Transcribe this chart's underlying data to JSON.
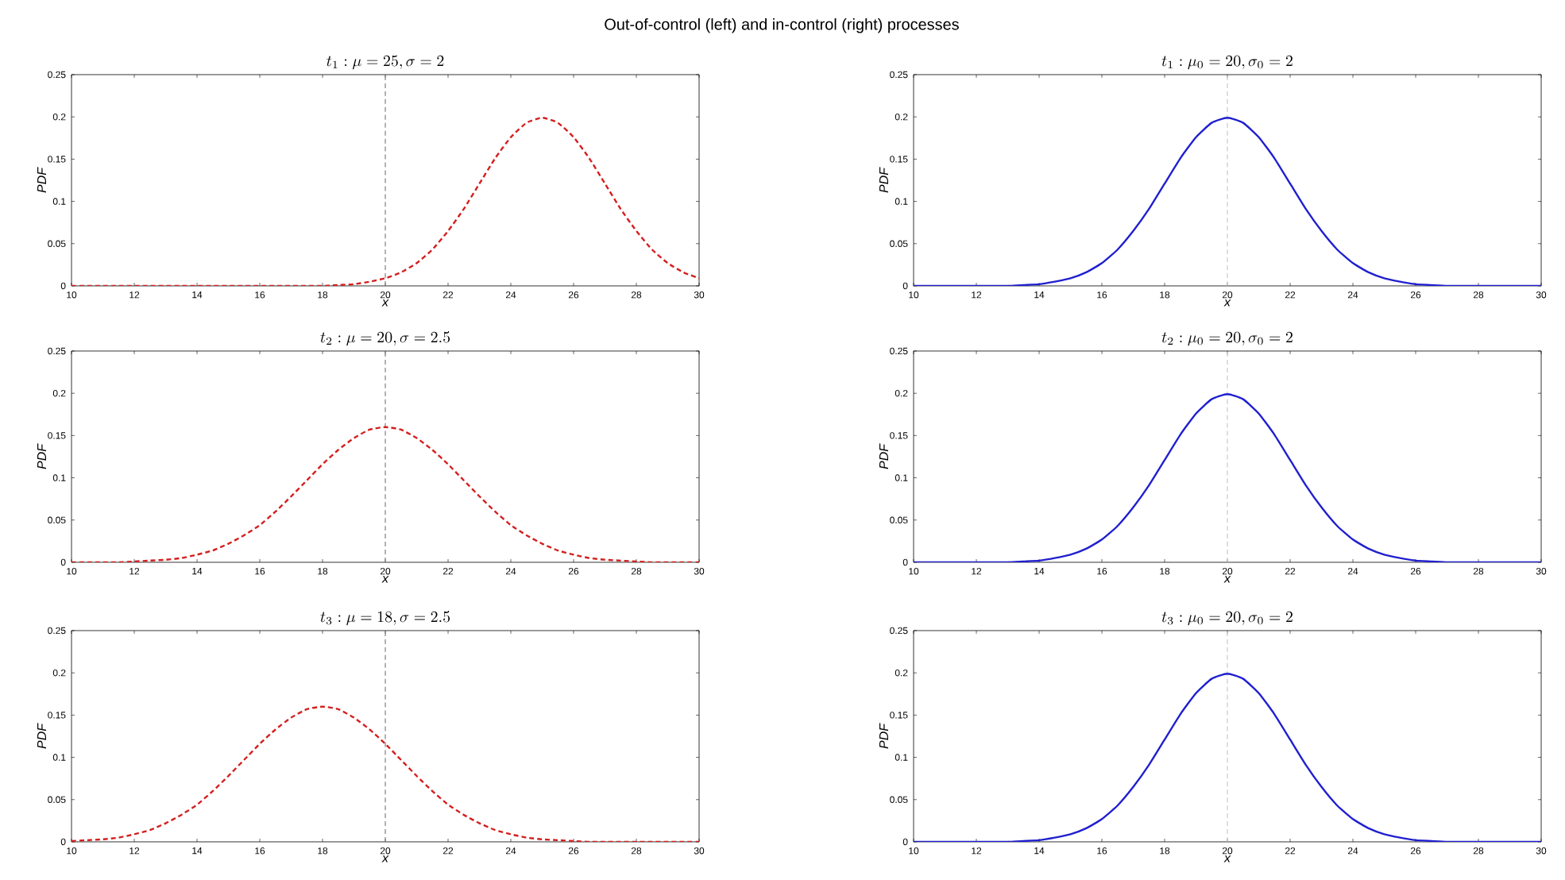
{
  "chart_data": [
    {
      "type": "line",
      "title": "t_1 : \\mu = 25, \\sigma = 2",
      "xlabel": "x",
      "ylabel": "PDF",
      "annotations": [
        "Out-of-control (left) and in-control (right) processes"
      ],
      "line_style": "dashed",
      "xlim": [
        10,
        30
      ],
      "ylim": [
        0,
        0.25
      ],
      "xticks": [
        10,
        12,
        14,
        16,
        18,
        20,
        22,
        24,
        26,
        28,
        30
      ],
      "yticks": [
        0,
        0.05,
        0.1,
        0.15,
        0.2,
        0.25
      ],
      "x": [
        10,
        10.5,
        11,
        11.5,
        12,
        12.5,
        13,
        13.5,
        14,
        14.5,
        15,
        15.5,
        16,
        16.5,
        17,
        17.5,
        18,
        18.5,
        19,
        19.5,
        20,
        20.5,
        21,
        21.5,
        22,
        22.5,
        23,
        23.5,
        24,
        24.5,
        25,
        25.5,
        26,
        26.5,
        27,
        27.5,
        28,
        28.5,
        29,
        29.5,
        30
      ],
      "series": [
        {
          "color": "#d41f1f",
          "values": [
            0,
            0,
            0,
            0,
            0,
            0,
            0,
            0,
            0,
            0,
            0,
            0,
            0,
            0,
            0,
            0,
            0,
            0.001,
            0.002,
            0.005,
            0.009,
            0.016,
            0.027,
            0.043,
            0.065,
            0.091,
            0.121,
            0.151,
            0.176,
            0.193,
            0.199,
            0.193,
            0.176,
            0.151,
            0.121,
            0.091,
            0.065,
            0.043,
            0.027,
            0.016,
            0.009
          ]
        }
      ],
      "ref_lines": [
        {
          "axis": "x",
          "value": 20,
          "color": "#808080",
          "line_style": "dashed"
        }
      ]
    },
    {
      "type": "line",
      "title": "t_1 : \\mu_0 = 20, \\sigma_0 = 2",
      "xlabel": "x",
      "ylabel": "PDF",
      "line_style": "solid",
      "xlim": [
        10,
        30
      ],
      "ylim": [
        0,
        0.25
      ],
      "xticks": [
        10,
        12,
        14,
        16,
        18,
        20,
        22,
        24,
        26,
        28,
        30
      ],
      "yticks": [
        0,
        0.05,
        0.1,
        0.15,
        0.2,
        0.25
      ],
      "x": [
        10,
        10.5,
        11,
        11.5,
        12,
        12.5,
        13,
        13.5,
        14,
        14.5,
        15,
        15.5,
        16,
        16.5,
        17,
        17.5,
        18,
        18.5,
        19,
        19.5,
        20,
        20.5,
        21,
        21.5,
        22,
        22.5,
        23,
        23.5,
        24,
        24.5,
        25,
        25.5,
        26,
        26.5,
        27,
        27.5,
        28,
        28.5,
        29,
        29.5,
        30
      ],
      "series": [
        {
          "color": "#1f1fd0",
          "values": [
            0,
            0,
            0,
            0,
            0,
            0,
            0,
            0.001,
            0.002,
            0.005,
            0.009,
            0.016,
            0.027,
            0.043,
            0.065,
            0.091,
            0.121,
            0.151,
            0.176,
            0.193,
            0.199,
            0.193,
            0.176,
            0.151,
            0.121,
            0.091,
            0.065,
            0.043,
            0.027,
            0.016,
            0.009,
            0.005,
            0.002,
            0.001,
            0,
            0,
            0,
            0,
            0,
            0,
            0
          ]
        }
      ],
      "ref_lines": [
        {
          "axis": "x",
          "value": 20,
          "color": "#c8c8c8",
          "line_style": "dashed"
        }
      ]
    },
    {
      "type": "line",
      "title": "t_2 : \\mu = 20, \\sigma = 2.5",
      "xlabel": "x",
      "ylabel": "PDF",
      "line_style": "dashed",
      "xlim": [
        10,
        30
      ],
      "ylim": [
        0,
        0.25
      ],
      "xticks": [
        10,
        12,
        14,
        16,
        18,
        20,
        22,
        24,
        26,
        28,
        30
      ],
      "yticks": [
        0,
        0.05,
        0.1,
        0.15,
        0.2,
        0.25
      ],
      "x": [
        10,
        10.5,
        11,
        11.5,
        12,
        12.5,
        13,
        13.5,
        14,
        14.5,
        15,
        15.5,
        16,
        16.5,
        17,
        17.5,
        18,
        18.5,
        19,
        19.5,
        20,
        20.5,
        21,
        21.5,
        22,
        22.5,
        23,
        23.5,
        24,
        24.5,
        25,
        25.5,
        26,
        26.5,
        27,
        27.5,
        28,
        28.5,
        29,
        29.5,
        30
      ],
      "series": [
        {
          "color": "#d41f1f",
          "values": [
            0,
            0,
            0,
            0,
            0.001,
            0.002,
            0.003,
            0.005,
            0.009,
            0.014,
            0.022,
            0.032,
            0.044,
            0.06,
            0.078,
            0.097,
            0.116,
            0.133,
            0.147,
            0.157,
            0.16,
            0.157,
            0.147,
            0.133,
            0.116,
            0.097,
            0.078,
            0.06,
            0.044,
            0.032,
            0.022,
            0.014,
            0.009,
            0.005,
            0.003,
            0.002,
            0.001,
            0,
            0,
            0,
            0
          ]
        }
      ],
      "ref_lines": [
        {
          "axis": "x",
          "value": 20,
          "color": "#808080",
          "line_style": "dashed"
        }
      ]
    },
    {
      "type": "line",
      "title": "t_2 : \\mu_0 = 20, \\sigma_0 = 2",
      "xlabel": "x",
      "ylabel": "PDF",
      "line_style": "solid",
      "xlim": [
        10,
        30
      ],
      "ylim": [
        0,
        0.25
      ],
      "xticks": [
        10,
        12,
        14,
        16,
        18,
        20,
        22,
        24,
        26,
        28,
        30
      ],
      "yticks": [
        0,
        0.05,
        0.1,
        0.15,
        0.2,
        0.25
      ],
      "x": [
        10,
        10.5,
        11,
        11.5,
        12,
        12.5,
        13,
        13.5,
        14,
        14.5,
        15,
        15.5,
        16,
        16.5,
        17,
        17.5,
        18,
        18.5,
        19,
        19.5,
        20,
        20.5,
        21,
        21.5,
        22,
        22.5,
        23,
        23.5,
        24,
        24.5,
        25,
        25.5,
        26,
        26.5,
        27,
        27.5,
        28,
        28.5,
        29,
        29.5,
        30
      ],
      "series": [
        {
          "color": "#1f1fd0",
          "values": [
            0,
            0,
            0,
            0,
            0,
            0,
            0,
            0.001,
            0.002,
            0.005,
            0.009,
            0.016,
            0.027,
            0.043,
            0.065,
            0.091,
            0.121,
            0.151,
            0.176,
            0.193,
            0.199,
            0.193,
            0.176,
            0.151,
            0.121,
            0.091,
            0.065,
            0.043,
            0.027,
            0.016,
            0.009,
            0.005,
            0.002,
            0.001,
            0,
            0,
            0,
            0,
            0,
            0,
            0
          ]
        }
      ],
      "ref_lines": [
        {
          "axis": "x",
          "value": 20,
          "color": "#c8c8c8",
          "line_style": "dashed"
        }
      ]
    },
    {
      "type": "line",
      "title": "t_3 : \\mu = 18, \\sigma = 2.5",
      "xlabel": "x",
      "ylabel": "PDF",
      "line_style": "dashed",
      "xlim": [
        10,
        30
      ],
      "ylim": [
        0,
        0.25
      ],
      "xticks": [
        10,
        12,
        14,
        16,
        18,
        20,
        22,
        24,
        26,
        28,
        30
      ],
      "yticks": [
        0,
        0.05,
        0.1,
        0.15,
        0.2,
        0.25
      ],
      "x": [
        10,
        10.5,
        11,
        11.5,
        12,
        12.5,
        13,
        13.5,
        14,
        14.5,
        15,
        15.5,
        16,
        16.5,
        17,
        17.5,
        18,
        18.5,
        19,
        19.5,
        20,
        20.5,
        21,
        21.5,
        22,
        22.5,
        23,
        23.5,
        24,
        24.5,
        25,
        25.5,
        26,
        26.5,
        27,
        27.5,
        28,
        28.5,
        29,
        29.5,
        30
      ],
      "series": [
        {
          "color": "#d41f1f",
          "values": [
            0.001,
            0.002,
            0.003,
            0.005,
            0.009,
            0.014,
            0.022,
            0.032,
            0.044,
            0.06,
            0.078,
            0.097,
            0.116,
            0.133,
            0.147,
            0.157,
            0.16,
            0.157,
            0.147,
            0.133,
            0.116,
            0.097,
            0.078,
            0.06,
            0.044,
            0.032,
            0.022,
            0.014,
            0.009,
            0.005,
            0.003,
            0.002,
            0.001,
            0,
            0,
            0,
            0,
            0,
            0,
            0,
            0
          ]
        }
      ],
      "ref_lines": [
        {
          "axis": "x",
          "value": 20,
          "color": "#808080",
          "line_style": "dashed"
        }
      ]
    },
    {
      "type": "line",
      "title": "t_3 : \\mu_0 = 20, \\sigma_0 = 2",
      "xlabel": "x",
      "ylabel": "PDF",
      "line_style": "solid",
      "xlim": [
        10,
        30
      ],
      "ylim": [
        0,
        0.25
      ],
      "xticks": [
        10,
        12,
        14,
        16,
        18,
        20,
        22,
        24,
        26,
        28,
        30
      ],
      "yticks": [
        0,
        0.05,
        0.1,
        0.15,
        0.2,
        0.25
      ],
      "x": [
        10,
        10.5,
        11,
        11.5,
        12,
        12.5,
        13,
        13.5,
        14,
        14.5,
        15,
        15.5,
        16,
        16.5,
        17,
        17.5,
        18,
        18.5,
        19,
        19.5,
        20,
        20.5,
        21,
        21.5,
        22,
        22.5,
        23,
        23.5,
        24,
        24.5,
        25,
        25.5,
        26,
        26.5,
        27,
        27.5,
        28,
        28.5,
        29,
        29.5,
        30
      ],
      "series": [
        {
          "color": "#1f1fd0",
          "values": [
            0,
            0,
            0,
            0,
            0,
            0,
            0,
            0.001,
            0.002,
            0.005,
            0.009,
            0.016,
            0.027,
            0.043,
            0.065,
            0.091,
            0.121,
            0.151,
            0.176,
            0.193,
            0.199,
            0.193,
            0.176,
            0.151,
            0.121,
            0.091,
            0.065,
            0.043,
            0.027,
            0.016,
            0.009,
            0.005,
            0.002,
            0.001,
            0,
            0,
            0,
            0,
            0,
            0,
            0
          ]
        }
      ],
      "ref_lines": [
        {
          "axis": "x",
          "value": 20,
          "color": "#c8c8c8",
          "line_style": "dashed"
        }
      ]
    }
  ]
}
